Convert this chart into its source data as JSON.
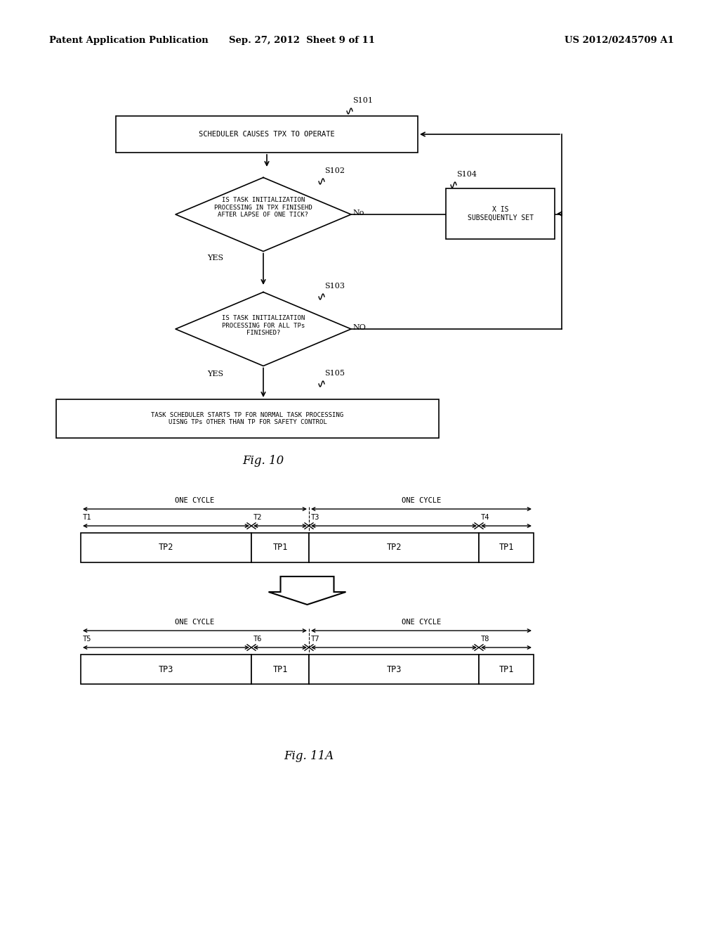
{
  "bg_color": "#ffffff",
  "header_left": "Patent Application Publication",
  "header_mid": "Sep. 27, 2012  Sheet 9 of 11",
  "header_right": "US 2012/0245709 A1",
  "fig10_label": "Fig. 10",
  "fig11a_label": "Fig. 11A"
}
